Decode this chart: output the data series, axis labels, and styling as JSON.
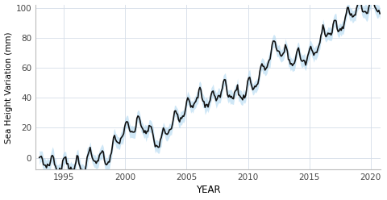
{
  "title": "",
  "xlabel": "YEAR",
  "ylabel": "Sea Height Variation (mm)",
  "xlim": [
    1992.7,
    2020.8
  ],
  "ylim": [
    -8,
    102
  ],
  "yticks": [
    0,
    20,
    40,
    60,
    80,
    100
  ],
  "xticks": [
    1995,
    2000,
    2005,
    2010,
    2015,
    2020
  ],
  "line_color": "#111111",
  "band_color": "#a8d4f0",
  "background_color": "#ffffff",
  "grid_color": "#d5dde8",
  "line_width": 1.2,
  "band_alpha": 0.55,
  "seed": 7
}
